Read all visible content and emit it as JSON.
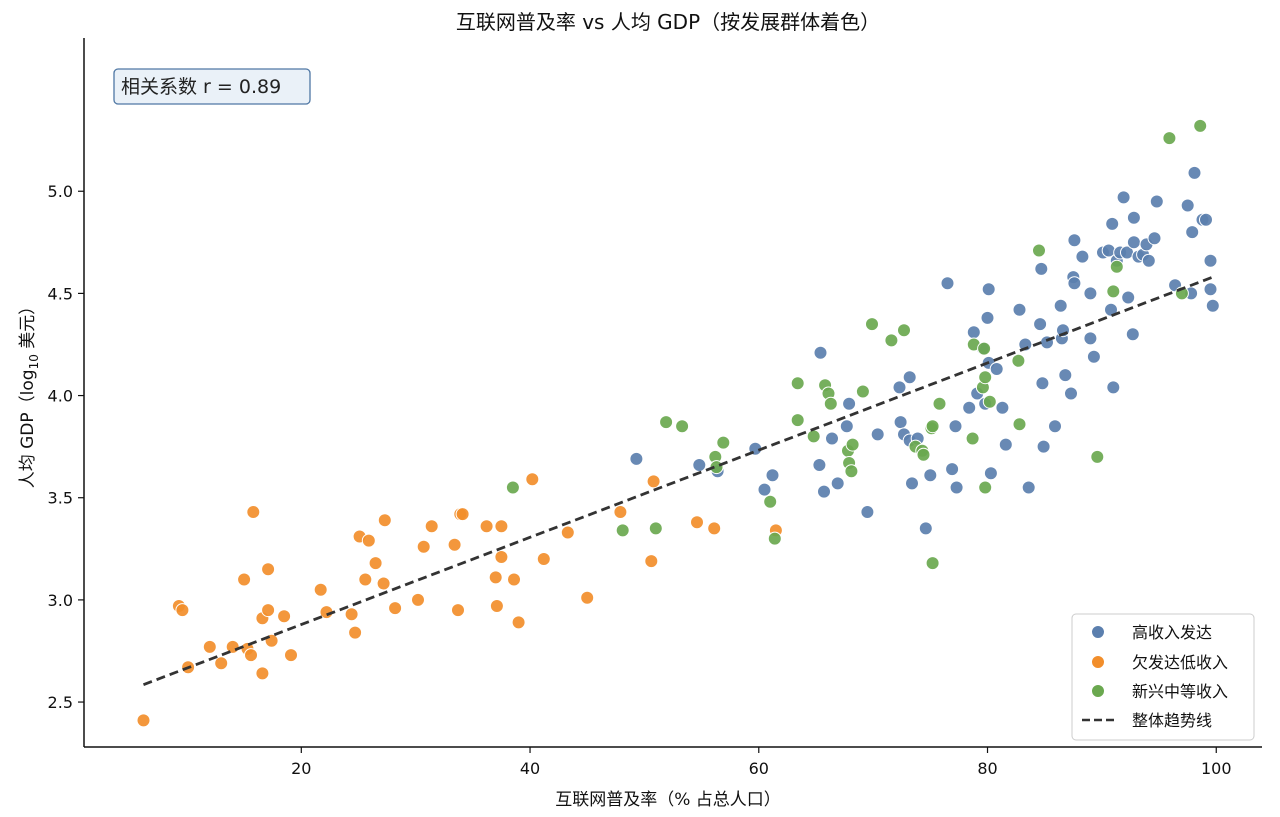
{
  "chart_data": {
    "type": "scatter",
    "title": "互联网普及率 vs 人均 GDP（按发展群体着色）",
    "xlabel": "互联网普及率（% 占总人口）",
    "ylabel_prefix": "人均 GDP（log",
    "ylabel_sub": "10",
    "ylabel_suffix": " 美元）",
    "xlim": [
      1,
      104
    ],
    "ylim": [
      2.28,
      5.75
    ],
    "xticks": [
      20,
      40,
      60,
      80,
      100
    ],
    "yticks": [
      2.5,
      3.0,
      3.5,
      4.0,
      4.5,
      5.0
    ],
    "xtick_labels": [
      "20",
      "40",
      "60",
      "80",
      "100"
    ],
    "ytick_labels": [
      "2.5",
      "3.0",
      "3.5",
      "4.0",
      "4.5",
      "5.0"
    ],
    "grid": false,
    "legend_position": "bottom-right",
    "annotation": "相关系数 r = 0.89",
    "series": [
      {
        "name": "高收入发达",
        "color": "#5b7fae",
        "points": [
          [
            49.3,
            3.69
          ],
          [
            54.8,
            3.66
          ],
          [
            56.4,
            3.63
          ],
          [
            59.7,
            3.74
          ],
          [
            60.5,
            3.54
          ],
          [
            61.2,
            3.61
          ],
          [
            65.3,
            3.66
          ],
          [
            65.7,
            3.53
          ],
          [
            66.4,
            3.79
          ],
          [
            66.9,
            3.57
          ],
          [
            67.7,
            3.85
          ],
          [
            65.4,
            4.21
          ],
          [
            67.9,
            3.96
          ],
          [
            69.5,
            3.43
          ],
          [
            70.4,
            3.81
          ],
          [
            72.3,
            4.04
          ],
          [
            72.4,
            3.87
          ],
          [
            72.7,
            3.81
          ],
          [
            73.2,
            4.09
          ],
          [
            73.2,
            3.78
          ],
          [
            73.4,
            3.57
          ],
          [
            73.9,
            3.79
          ],
          [
            74.6,
            3.35
          ],
          [
            75.0,
            3.61
          ],
          [
            76.5,
            4.55
          ],
          [
            76.9,
            3.64
          ],
          [
            77.2,
            3.85
          ],
          [
            77.3,
            3.55
          ],
          [
            78.4,
            3.94
          ],
          [
            78.8,
            4.31
          ],
          [
            79.1,
            4.01
          ],
          [
            79.6,
            4.23
          ],
          [
            79.8,
            3.96
          ],
          [
            80.1,
            4.52
          ],
          [
            80.0,
            4.38
          ],
          [
            80.1,
            4.16
          ],
          [
            80.3,
            3.62
          ],
          [
            80.8,
            4.13
          ],
          [
            81.3,
            3.94
          ],
          [
            81.6,
            3.76
          ],
          [
            82.8,
            4.42
          ],
          [
            83.3,
            4.25
          ],
          [
            83.6,
            3.55
          ],
          [
            84.6,
            4.35
          ],
          [
            84.8,
            4.06
          ],
          [
            84.9,
            3.75
          ],
          [
            84.7,
            4.62
          ],
          [
            85.2,
            4.26
          ],
          [
            85.9,
            3.85
          ],
          [
            86.4,
            4.44
          ],
          [
            86.5,
            4.28
          ],
          [
            86.6,
            4.32
          ],
          [
            86.8,
            4.1
          ],
          [
            87.3,
            4.01
          ],
          [
            87.5,
            4.58
          ],
          [
            87.6,
            4.55
          ],
          [
            87.6,
            4.76
          ],
          [
            88.3,
            4.68
          ],
          [
            89.0,
            4.5
          ],
          [
            89.0,
            4.28
          ],
          [
            89.3,
            4.19
          ],
          [
            90.1,
            4.7
          ],
          [
            90.6,
            4.71
          ],
          [
            90.8,
            4.42
          ],
          [
            90.9,
            4.84
          ],
          [
            91.3,
            4.66
          ],
          [
            91.0,
            4.04
          ],
          [
            91.6,
            4.7
          ],
          [
            91.9,
            4.97
          ],
          [
            92.2,
            4.7
          ],
          [
            92.3,
            4.48
          ],
          [
            92.7,
            4.3
          ],
          [
            92.8,
            4.87
          ],
          [
            92.8,
            4.75
          ],
          [
            93.2,
            4.68
          ],
          [
            93.6,
            4.69
          ],
          [
            93.9,
            4.74
          ],
          [
            94.1,
            4.66
          ],
          [
            94.6,
            4.77
          ],
          [
            94.8,
            4.95
          ],
          [
            96.4,
            4.54
          ],
          [
            97.5,
            4.93
          ],
          [
            97.8,
            4.5
          ],
          [
            97.9,
            4.8
          ],
          [
            98.1,
            5.09
          ],
          [
            98.8,
            4.86
          ],
          [
            99.1,
            4.86
          ],
          [
            99.5,
            4.66
          ],
          [
            99.5,
            4.52
          ],
          [
            99.7,
            4.44
          ]
        ]
      },
      {
        "name": "欠发达低收入",
        "color": "#f28e2b",
        "points": [
          [
            6.2,
            2.41
          ],
          [
            9.3,
            2.97
          ],
          [
            9.6,
            2.95
          ],
          [
            10.1,
            2.67
          ],
          [
            12.0,
            2.77
          ],
          [
            13.0,
            2.69
          ],
          [
            14.0,
            2.77
          ],
          [
            15.0,
            3.1
          ],
          [
            15.3,
            2.76
          ],
          [
            15.6,
            2.73
          ],
          [
            15.8,
            3.43
          ],
          [
            16.6,
            2.91
          ],
          [
            16.6,
            2.64
          ],
          [
            17.1,
            3.15
          ],
          [
            17.1,
            2.95
          ],
          [
            17.4,
            2.8
          ],
          [
            18.5,
            2.92
          ],
          [
            19.1,
            2.73
          ],
          [
            21.7,
            3.05
          ],
          [
            22.2,
            2.94
          ],
          [
            24.4,
            2.93
          ],
          [
            24.7,
            2.84
          ],
          [
            25.1,
            3.31
          ],
          [
            25.6,
            3.1
          ],
          [
            25.9,
            3.29
          ],
          [
            26.5,
            3.18
          ],
          [
            27.2,
            3.08
          ],
          [
            27.3,
            3.39
          ],
          [
            28.2,
            2.96
          ],
          [
            30.2,
            3.0
          ],
          [
            30.7,
            3.26
          ],
          [
            31.4,
            3.36
          ],
          [
            33.4,
            3.27
          ],
          [
            33.7,
            2.95
          ],
          [
            33.9,
            3.42
          ],
          [
            34.1,
            3.42
          ],
          [
            36.2,
            3.36
          ],
          [
            37.0,
            3.11
          ],
          [
            37.1,
            2.97
          ],
          [
            37.5,
            3.36
          ],
          [
            37.5,
            3.21
          ],
          [
            38.6,
            3.1
          ],
          [
            39.0,
            2.89
          ],
          [
            40.2,
            3.59
          ],
          [
            41.2,
            3.2
          ],
          [
            43.3,
            3.33
          ],
          [
            45.0,
            3.01
          ],
          [
            47.9,
            3.43
          ],
          [
            50.6,
            3.19
          ],
          [
            50.8,
            3.58
          ],
          [
            54.6,
            3.38
          ],
          [
            56.1,
            3.35
          ],
          [
            61.5,
            3.34
          ]
        ]
      },
      {
        "name": "新兴中等收入",
        "color": "#6aa84f",
        "points": [
          [
            38.5,
            3.55
          ],
          [
            48.1,
            3.34
          ],
          [
            51.0,
            3.35
          ],
          [
            51.9,
            3.87
          ],
          [
            53.3,
            3.85
          ],
          [
            56.2,
            3.7
          ],
          [
            56.3,
            3.65
          ],
          [
            56.9,
            3.77
          ],
          [
            61.0,
            3.48
          ],
          [
            61.4,
            3.3
          ],
          [
            63.4,
            4.06
          ],
          [
            63.4,
            3.88
          ],
          [
            64.8,
            3.8
          ],
          [
            65.8,
            4.05
          ],
          [
            66.1,
            4.01
          ],
          [
            66.3,
            3.96
          ],
          [
            67.8,
            3.73
          ],
          [
            67.9,
            3.67
          ],
          [
            68.1,
            3.63
          ],
          [
            68.2,
            3.76
          ],
          [
            69.1,
            4.02
          ],
          [
            69.9,
            4.35
          ],
          [
            71.6,
            4.27
          ],
          [
            72.7,
            4.32
          ],
          [
            73.7,
            3.75
          ],
          [
            74.3,
            3.73
          ],
          [
            74.4,
            3.71
          ],
          [
            75.1,
            3.84
          ],
          [
            75.2,
            3.85
          ],
          [
            75.2,
            3.18
          ],
          [
            75.8,
            3.96
          ],
          [
            78.7,
            3.79
          ],
          [
            78.8,
            4.25
          ],
          [
            79.6,
            4.04
          ],
          [
            79.7,
            4.23
          ],
          [
            79.8,
            4.09
          ],
          [
            79.8,
            3.55
          ],
          [
            80.2,
            3.97
          ],
          [
            82.7,
            4.17
          ],
          [
            82.8,
            3.86
          ],
          [
            84.5,
            4.71
          ],
          [
            89.6,
            3.7
          ],
          [
            91.0,
            4.51
          ],
          [
            91.3,
            4.63
          ],
          [
            95.9,
            5.26
          ],
          [
            97.0,
            4.5
          ],
          [
            98.6,
            5.32
          ]
        ]
      }
    ],
    "trendline": {
      "name": "整体趋势线",
      "color": "#333333",
      "x": [
        6.2,
        99.7
      ],
      "y": [
        2.585,
        4.58
      ]
    }
  }
}
